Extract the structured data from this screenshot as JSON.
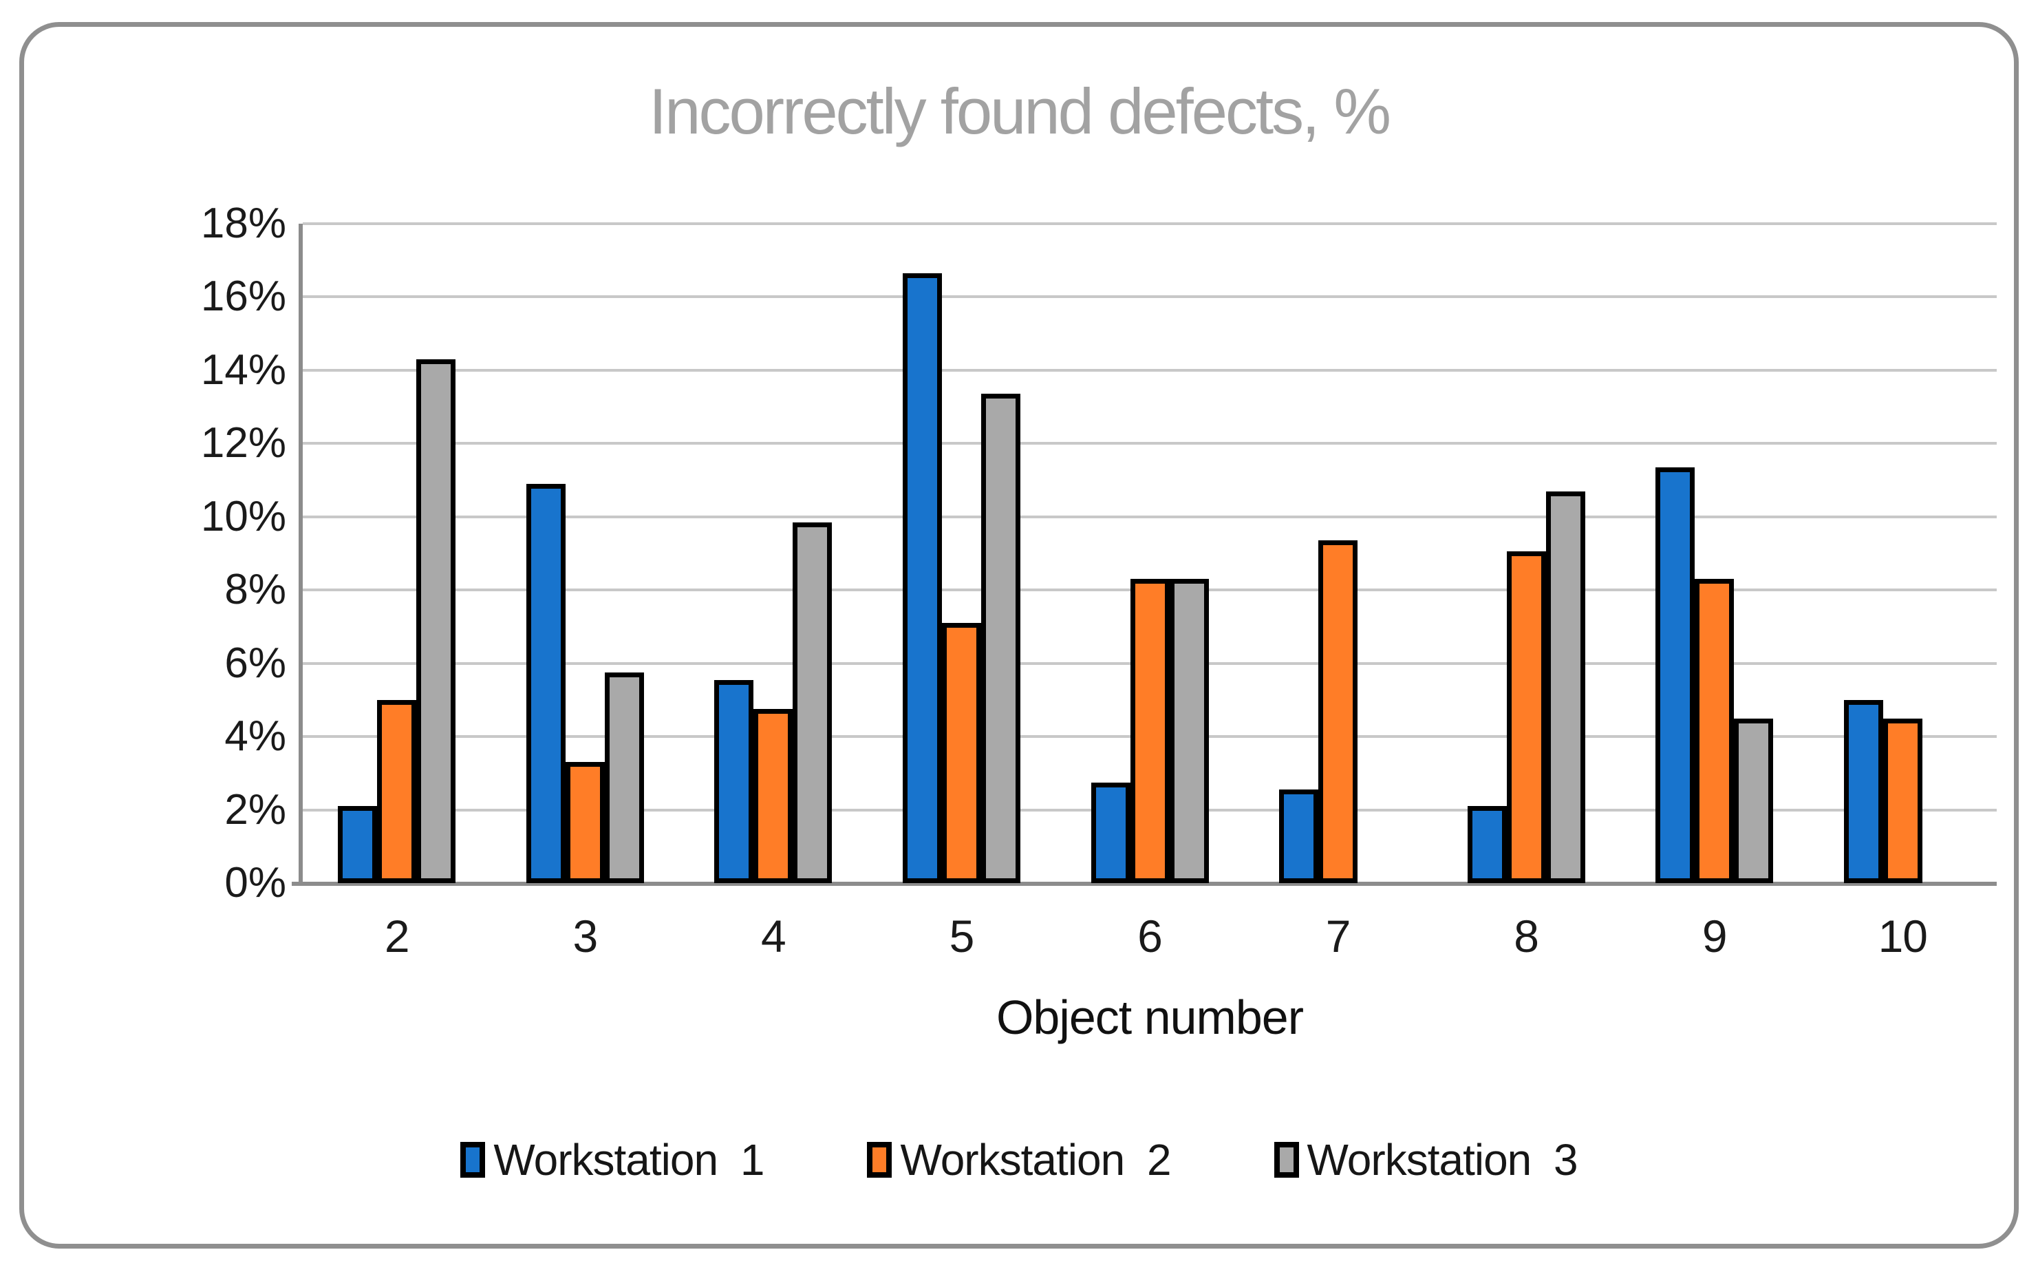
{
  "title": "Incorrectly found defects, %",
  "chart_data": {
    "type": "bar",
    "title": "Incorrectly found defects, %",
    "xlabel": "Object number",
    "ylabel": "",
    "categories": [
      "2",
      "3",
      "4",
      "5",
      "6",
      "7",
      "8",
      "9",
      "10"
    ],
    "series": [
      {
        "name": "Workstation 1",
        "color": "#1874cd",
        "values": [
          2.1,
          10.9,
          5.55,
          16.65,
          2.75,
          2.55,
          2.1,
          11.35,
          5.0
        ]
      },
      {
        "name": "Workstation 2",
        "color": "#ff7d27",
        "values": [
          5.0,
          3.3,
          4.75,
          7.1,
          8.3,
          9.35,
          9.05,
          8.3,
          4.5
        ]
      },
      {
        "name": "Workstation 3",
        "color": "#a9a9a9",
        "values": [
          14.3,
          5.75,
          9.85,
          13.35,
          8.3,
          null,
          10.7,
          4.5,
          null
        ]
      }
    ],
    "ylim": [
      0,
      18
    ],
    "yticks": [
      0,
      2,
      4,
      6,
      8,
      10,
      12,
      14,
      16,
      18
    ],
    "ytick_labels": [
      "0%",
      "2%",
      "4%",
      "6%",
      "8%",
      "10%",
      "12%",
      "14%",
      "16%",
      "18%"
    ],
    "grid": true,
    "legend_position": "bottom",
    "bar_border_color": "#000000",
    "gridline_color": "#c8c8c8",
    "axis_color": "#8c8c8c",
    "title_color": "#a2a2a2"
  }
}
